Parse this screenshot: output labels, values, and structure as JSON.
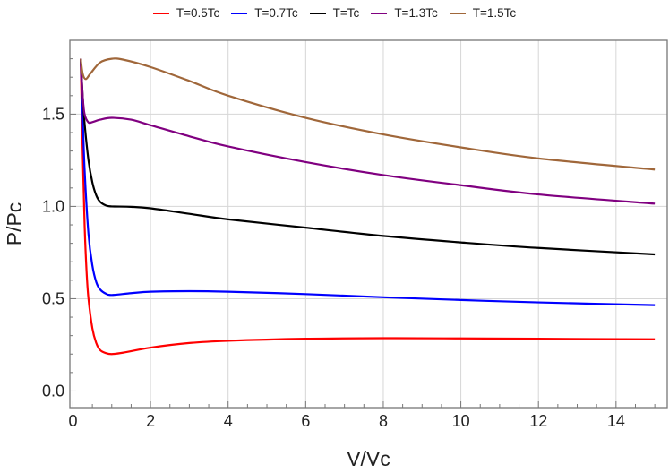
{
  "chart_data": {
    "type": "line",
    "title": "",
    "xlabel": "V/Vc",
    "ylabel": "P/Pc",
    "xlim": [
      -0.08,
      15.32
    ],
    "ylim": [
      -0.09,
      1.9
    ],
    "xticks": [
      0,
      2,
      4,
      6,
      8,
      10,
      12,
      14
    ],
    "yticks": [
      0.0,
      0.5,
      1.0,
      1.5
    ],
    "xtick_labels": [
      "0",
      "2",
      "4",
      "6",
      "8",
      "10",
      "12",
      "14"
    ],
    "ytick_labels": [
      "0.0",
      "0.5",
      "1.0",
      "1.5"
    ],
    "grid": true,
    "legend_position": "top",
    "series": [
      {
        "name": "T=0.5Tc",
        "color": "#ff0000",
        "points": [
          [
            0.2,
            1.8
          ],
          [
            0.25,
            1.3
          ],
          [
            0.3,
            0.9
          ],
          [
            0.35,
            0.65
          ],
          [
            0.4,
            0.5
          ],
          [
            0.5,
            0.34
          ],
          [
            0.6,
            0.26
          ],
          [
            0.7,
            0.222
          ],
          [
            0.85,
            0.205
          ],
          [
            1,
            0.2
          ],
          [
            1.3,
            0.208
          ],
          [
            2,
            0.235
          ],
          [
            3,
            0.26
          ],
          [
            4,
            0.272
          ],
          [
            6,
            0.283
          ],
          [
            8,
            0.286
          ],
          [
            10,
            0.285
          ],
          [
            12,
            0.283
          ],
          [
            15,
            0.28
          ]
        ]
      },
      {
        "name": "T=0.7Tc",
        "color": "#0000ff",
        "points": [
          [
            0.2,
            1.8
          ],
          [
            0.25,
            1.5
          ],
          [
            0.3,
            1.2
          ],
          [
            0.4,
            0.85
          ],
          [
            0.5,
            0.68
          ],
          [
            0.6,
            0.59
          ],
          [
            0.7,
            0.55
          ],
          [
            0.85,
            0.527
          ],
          [
            1,
            0.52
          ],
          [
            1.5,
            0.53
          ],
          [
            2,
            0.538
          ],
          [
            3,
            0.541
          ],
          [
            4,
            0.538
          ],
          [
            6,
            0.525
          ],
          [
            8,
            0.508
          ],
          [
            10,
            0.493
          ],
          [
            12,
            0.48
          ],
          [
            15,
            0.465
          ]
        ]
      },
      {
        "name": "T=Tc",
        "color": "#000000",
        "points": [
          [
            0.2,
            1.8
          ],
          [
            0.25,
            1.6
          ],
          [
            0.3,
            1.45
          ],
          [
            0.4,
            1.25
          ],
          [
            0.5,
            1.13
          ],
          [
            0.6,
            1.06
          ],
          [
            0.7,
            1.025
          ],
          [
            0.85,
            1.005
          ],
          [
            1,
            1.0
          ],
          [
            1.5,
            0.998
          ],
          [
            2,
            0.99
          ],
          [
            3,
            0.96
          ],
          [
            4,
            0.93
          ],
          [
            6,
            0.885
          ],
          [
            8,
            0.84
          ],
          [
            10,
            0.805
          ],
          [
            12,
            0.775
          ],
          [
            15,
            0.74
          ]
        ]
      },
      {
        "name": "T=1.3Tc",
        "color": "#800080",
        "points": [
          [
            0.2,
            1.8
          ],
          [
            0.25,
            1.6
          ],
          [
            0.3,
            1.5
          ],
          [
            0.4,
            1.455
          ],
          [
            0.5,
            1.457
          ],
          [
            0.7,
            1.47
          ],
          [
            1,
            1.48
          ],
          [
            1.5,
            1.47
          ],
          [
            2,
            1.44
          ],
          [
            3,
            1.38
          ],
          [
            4,
            1.325
          ],
          [
            6,
            1.24
          ],
          [
            8,
            1.17
          ],
          [
            10,
            1.115
          ],
          [
            12,
            1.065
          ],
          [
            15,
            1.015
          ]
        ]
      },
      {
        "name": "T=1.5Tc",
        "color": "#a0673a",
        "points": [
          [
            0.2,
            1.8
          ],
          [
            0.25,
            1.72
          ],
          [
            0.33,
            1.69
          ],
          [
            0.45,
            1.72
          ],
          [
            0.7,
            1.78
          ],
          [
            1,
            1.8
          ],
          [
            1.3,
            1.795
          ],
          [
            2,
            1.755
          ],
          [
            3,
            1.68
          ],
          [
            4,
            1.6
          ],
          [
            6,
            1.48
          ],
          [
            8,
            1.39
          ],
          [
            10,
            1.32
          ],
          [
            12,
            1.26
          ],
          [
            15,
            1.2
          ]
        ]
      }
    ]
  }
}
